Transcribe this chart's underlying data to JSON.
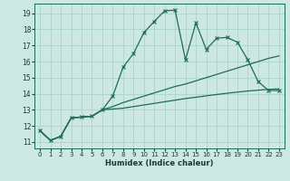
{
  "title": "",
  "xlabel": "Humidex (Indice chaleur)",
  "ylabel": "",
  "bg_color": "#cde8e2",
  "grid_color": "#a8d4cc",
  "line_color": "#1e6b5a",
  "xlim": [
    -0.5,
    23.5
  ],
  "ylim": [
    10.6,
    19.6
  ],
  "xticks": [
    0,
    1,
    2,
    3,
    4,
    5,
    6,
    7,
    8,
    9,
    10,
    11,
    12,
    13,
    14,
    15,
    16,
    17,
    18,
    19,
    20,
    21,
    22,
    23
  ],
  "yticks": [
    11,
    12,
    13,
    14,
    15,
    16,
    17,
    18,
    19
  ],
  "series1_x": [
    0,
    1,
    2,
    3,
    4,
    5,
    6,
    7,
    8,
    9,
    10,
    11,
    12,
    13,
    14,
    15,
    16,
    17,
    18,
    19,
    20,
    21,
    22,
    23
  ],
  "series1_y": [
    11.7,
    11.1,
    11.35,
    12.5,
    12.55,
    12.6,
    13.0,
    13.85,
    15.65,
    16.5,
    17.8,
    18.5,
    19.15,
    19.2,
    16.1,
    18.4,
    16.75,
    17.45,
    17.5,
    17.2,
    16.1,
    14.75,
    14.2,
    14.2
  ],
  "series2_x": [
    0,
    1,
    2,
    3,
    4,
    5,
    6,
    7,
    8,
    9,
    10,
    11,
    12,
    13,
    14,
    15,
    16,
    17,
    18,
    19,
    20,
    21,
    22,
    23
  ],
  "series2_y": [
    11.7,
    11.1,
    11.35,
    12.5,
    12.55,
    12.6,
    13.0,
    13.2,
    13.45,
    13.65,
    13.85,
    14.05,
    14.25,
    14.45,
    14.6,
    14.8,
    15.0,
    15.2,
    15.4,
    15.6,
    15.8,
    16.0,
    16.2,
    16.35
  ],
  "series3_x": [
    0,
    1,
    2,
    3,
    4,
    5,
    6,
    7,
    8,
    9,
    10,
    11,
    12,
    13,
    14,
    15,
    16,
    17,
    18,
    19,
    20,
    21,
    22,
    23
  ],
  "series3_y": [
    11.7,
    11.1,
    11.35,
    12.5,
    12.55,
    12.6,
    13.0,
    13.05,
    13.1,
    13.2,
    13.3,
    13.4,
    13.5,
    13.6,
    13.7,
    13.78,
    13.87,
    13.95,
    14.03,
    14.1,
    14.17,
    14.22,
    14.27,
    14.3
  ]
}
